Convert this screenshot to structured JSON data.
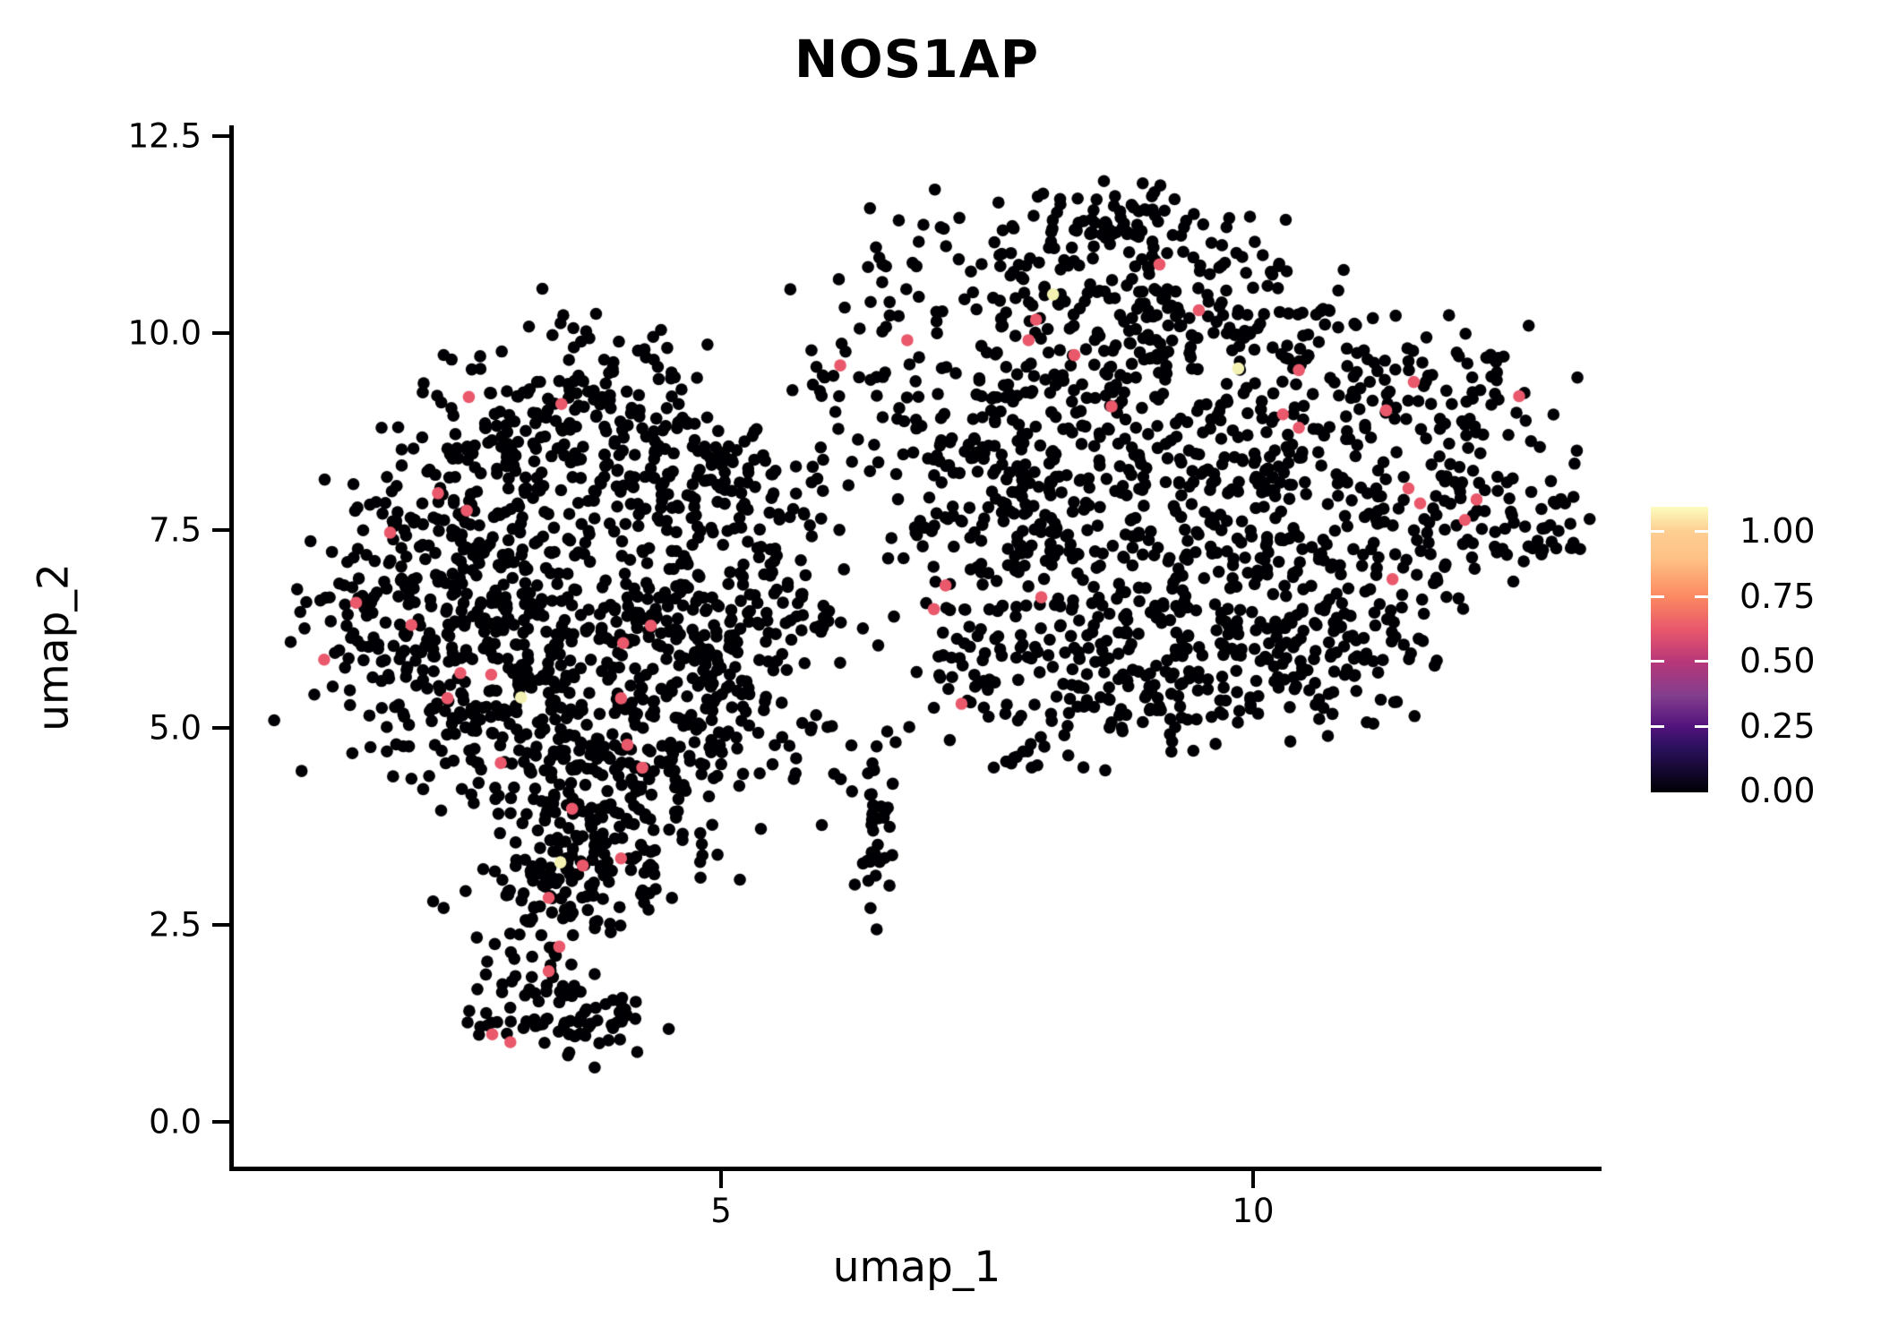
{
  "chart_data": {
    "type": "scatter",
    "title": "NOS1AP",
    "xlabel": "umap_1",
    "ylabel": "umap_2",
    "xlim": [
      0.4,
      13.28
    ],
    "ylim": [
      -0.59,
      12.61
    ],
    "grid": false,
    "x_ticks": [
      {
        "value": 5,
        "label": "5"
      },
      {
        "value": 10,
        "label": "10"
      }
    ],
    "y_ticks": [
      {
        "value": 12.5,
        "label": "12.5"
      },
      {
        "value": 10.0,
        "label": "10.0"
      },
      {
        "value": 7.5,
        "label": "7.5"
      },
      {
        "value": 5.0,
        "label": "5.0"
      },
      {
        "value": 2.5,
        "label": "2.5"
      },
      {
        "value": 0.0,
        "label": "0.0"
      }
    ],
    "colorbar": {
      "position": "right",
      "tick_entries": [
        {
          "value": 1.0,
          "label": "1.00"
        },
        {
          "value": 0.75,
          "label": "0.75"
        },
        {
          "value": 0.5,
          "label": "0.50"
        },
        {
          "value": 0.25,
          "label": "0.25"
        },
        {
          "value": 0.0,
          "label": "0.00"
        }
      ],
      "gradient_stops": [
        {
          "color": "#000004",
          "pos": 0.0
        },
        {
          "color": "#2c115f",
          "pos": 0.16
        },
        {
          "color": "#51127c",
          "pos": 0.228
        },
        {
          "color": "#833e8d",
          "pos": 0.34
        },
        {
          "color": "#b73779",
          "pos": 0.457
        },
        {
          "color": "#e8576b",
          "pos": 0.57
        },
        {
          "color": "#fc8961",
          "pos": 0.685
        },
        {
          "color": "#fec287",
          "pos": 0.82
        },
        {
          "color": "#fece91",
          "pos": 0.915
        },
        {
          "color": "#fcfdbf",
          "pos": 1.0
        }
      ]
    },
    "colors": {
      "zero_expression": "#000004",
      "mid_expression": "#e9586b",
      "high_expression": "#f3f2b2"
    },
    "point_radius_px": 6.8,
    "seed": 20240607,
    "clusters_zero_expression": [
      [
        2.2,
        6.6,
        0.5,
        0.75,
        105
      ],
      [
        3.0,
        6.15,
        0.55,
        0.85,
        135
      ],
      [
        3.6,
        5.55,
        0.5,
        0.75,
        105
      ],
      [
        2.55,
        7.55,
        0.5,
        0.55,
        75
      ],
      [
        3.3,
        8.55,
        0.55,
        0.55,
        85
      ],
      [
        3.85,
        9.45,
        0.4,
        0.45,
        55
      ],
      [
        4.3,
        8.6,
        0.45,
        0.5,
        55
      ],
      [
        4.6,
        7.8,
        0.45,
        0.6,
        60
      ],
      [
        4.3,
        6.7,
        0.45,
        0.6,
        70
      ],
      [
        4.65,
        5.9,
        0.45,
        0.55,
        65
      ],
      [
        5.1,
        5.5,
        0.4,
        0.55,
        50
      ],
      [
        4.0,
        4.7,
        0.5,
        0.55,
        75
      ],
      [
        3.5,
        4.0,
        0.45,
        0.55,
        70
      ],
      [
        4.05,
        3.4,
        0.4,
        0.45,
        55
      ],
      [
        3.3,
        3.0,
        0.35,
        0.4,
        40
      ],
      [
        1.65,
        6.35,
        0.3,
        0.55,
        30
      ],
      [
        2.0,
        5.6,
        0.35,
        0.5,
        40
      ],
      [
        5.0,
        8.3,
        0.4,
        0.5,
        42
      ],
      [
        5.45,
        7.5,
        0.35,
        0.65,
        38
      ],
      [
        5.3,
        6.4,
        0.35,
        0.55,
        35
      ],
      [
        4.75,
        4.5,
        0.35,
        0.45,
        38
      ],
      [
        2.45,
        4.95,
        0.35,
        0.45,
        35
      ],
      [
        2.9,
        8.9,
        0.4,
        0.4,
        42
      ],
      [
        3.4,
        2.35,
        0.3,
        0.4,
        32
      ],
      [
        3.35,
        1.35,
        0.4,
        0.35,
        55
      ],
      [
        3.8,
        1.25,
        0.3,
        0.25,
        28
      ],
      [
        3.75,
        2.85,
        0.4,
        0.25,
        25
      ],
      [
        8.6,
        11.45,
        0.5,
        0.22,
        46
      ],
      [
        8.05,
        11.15,
        0.35,
        0.28,
        23
      ],
      [
        9.3,
        11.25,
        0.45,
        0.3,
        33
      ],
      [
        7.7,
        10.4,
        0.5,
        0.45,
        36
      ],
      [
        8.6,
        10.4,
        0.45,
        0.4,
        39
      ],
      [
        9.6,
        10.3,
        0.5,
        0.45,
        46
      ],
      [
        10.4,
        9.95,
        0.45,
        0.45,
        39
      ],
      [
        9.0,
        9.6,
        0.55,
        0.55,
        55
      ],
      [
        8.0,
        9.3,
        0.5,
        0.55,
        49
      ],
      [
        7.2,
        9.0,
        0.45,
        0.55,
        39
      ],
      [
        10.9,
        9.35,
        0.45,
        0.45,
        39
      ],
      [
        11.6,
        8.95,
        0.4,
        0.45,
        39
      ],
      [
        9.8,
        8.8,
        0.5,
        0.55,
        55
      ],
      [
        8.8,
        8.4,
        0.55,
        0.55,
        59
      ],
      [
        7.8,
        8.2,
        0.5,
        0.55,
        55
      ],
      [
        7.0,
        7.8,
        0.4,
        0.55,
        36
      ],
      [
        10.6,
        8.3,
        0.45,
        0.5,
        46
      ],
      [
        11.9,
        8.0,
        0.4,
        0.45,
        42
      ],
      [
        12.45,
        7.6,
        0.35,
        0.45,
        36
      ],
      [
        9.5,
        7.6,
        0.55,
        0.55,
        65
      ],
      [
        8.5,
        7.3,
        0.5,
        0.55,
        59
      ],
      [
        7.6,
        7.0,
        0.45,
        0.55,
        46
      ],
      [
        10.5,
        7.2,
        0.45,
        0.5,
        49
      ],
      [
        11.3,
        6.9,
        0.4,
        0.45,
        46
      ],
      [
        9.0,
        6.4,
        0.5,
        0.5,
        55
      ],
      [
        9.9,
        6.3,
        0.45,
        0.45,
        49
      ],
      [
        8.2,
        6.1,
        0.45,
        0.45,
        46
      ],
      [
        10.8,
        6.05,
        0.4,
        0.4,
        39
      ],
      [
        7.4,
        5.9,
        0.4,
        0.45,
        33
      ],
      [
        9.4,
        5.4,
        0.5,
        0.35,
        39
      ],
      [
        8.6,
        5.2,
        0.45,
        0.35,
        33
      ],
      [
        10.2,
        5.5,
        0.4,
        0.35,
        29
      ],
      [
        7.9,
        5.0,
        0.35,
        0.3,
        21
      ],
      [
        11.15,
        5.85,
        0.35,
        0.35,
        25
      ],
      [
        12.3,
        9.25,
        0.3,
        0.35,
        26
      ],
      [
        12.85,
        7.65,
        0.12,
        0.35,
        14
      ],
      [
        6.45,
        3.5,
        0.12,
        0.4,
        30
      ],
      [
        6.5,
        4.4,
        0.12,
        0.25,
        8
      ],
      [
        6.2,
        8.6,
        0.3,
        0.7,
        20
      ],
      [
        6.0,
        6.2,
        0.25,
        0.9,
        14
      ],
      [
        5.75,
        4.7,
        0.35,
        0.5,
        12
      ],
      [
        6.6,
        10.6,
        0.35,
        0.45,
        18
      ],
      [
        7.05,
        11.3,
        0.25,
        0.25,
        10
      ],
      [
        5.9,
        9.6,
        0.3,
        0.4,
        12
      ]
    ],
    "mid_expression_points": [
      [
        1.57,
        6.58
      ],
      [
        2.09,
        6.3
      ],
      [
        1.27,
        5.86
      ],
      [
        2.55,
        5.69
      ],
      [
        2.84,
        5.67
      ],
      [
        2.43,
        5.37
      ],
      [
        4.34,
        6.29
      ],
      [
        4.08,
        6.07
      ],
      [
        4.06,
        5.37
      ],
      [
        4.12,
        4.78
      ],
      [
        2.93,
        4.55
      ],
      [
        4.26,
        4.49
      ],
      [
        3.6,
        3.97
      ],
      [
        3.7,
        3.25
      ],
      [
        4.06,
        3.34
      ],
      [
        2.63,
        9.19
      ],
      [
        3.5,
        9.1
      ],
      [
        2.34,
        7.97
      ],
      [
        2.61,
        7.75
      ],
      [
        1.89,
        7.47
      ],
      [
        3.38,
        2.84
      ],
      [
        3.48,
        2.22
      ],
      [
        3.38,
        1.91
      ],
      [
        2.85,
        1.11
      ],
      [
        3.02,
        1.01
      ],
      [
        9.12,
        10.87
      ],
      [
        9.49,
        10.29
      ],
      [
        7.96,
        10.17
      ],
      [
        7.89,
        9.91
      ],
      [
        8.32,
        9.72
      ],
      [
        6.75,
        9.91
      ],
      [
        8.67,
        9.07
      ],
      [
        10.28,
        8.97
      ],
      [
        10.43,
        9.53
      ],
      [
        11.51,
        9.38
      ],
      [
        11.25,
        9.02
      ],
      [
        10.43,
        8.8
      ],
      [
        11.46,
        8.03
      ],
      [
        11.57,
        7.84
      ],
      [
        12.1,
        7.89
      ],
      [
        11.99,
        7.63
      ],
      [
        11.31,
        6.88
      ],
      [
        7.11,
        6.8
      ],
      [
        7.0,
        6.5
      ],
      [
        7.26,
        5.3
      ],
      [
        6.12,
        9.59
      ],
      [
        12.5,
        9.2
      ],
      [
        8.01,
        6.65
      ]
    ],
    "high_expression_points": [
      [
        3.12,
        5.38
      ],
      [
        3.49,
        3.29
      ],
      [
        8.12,
        10.49
      ],
      [
        9.86,
        9.55
      ]
    ]
  }
}
